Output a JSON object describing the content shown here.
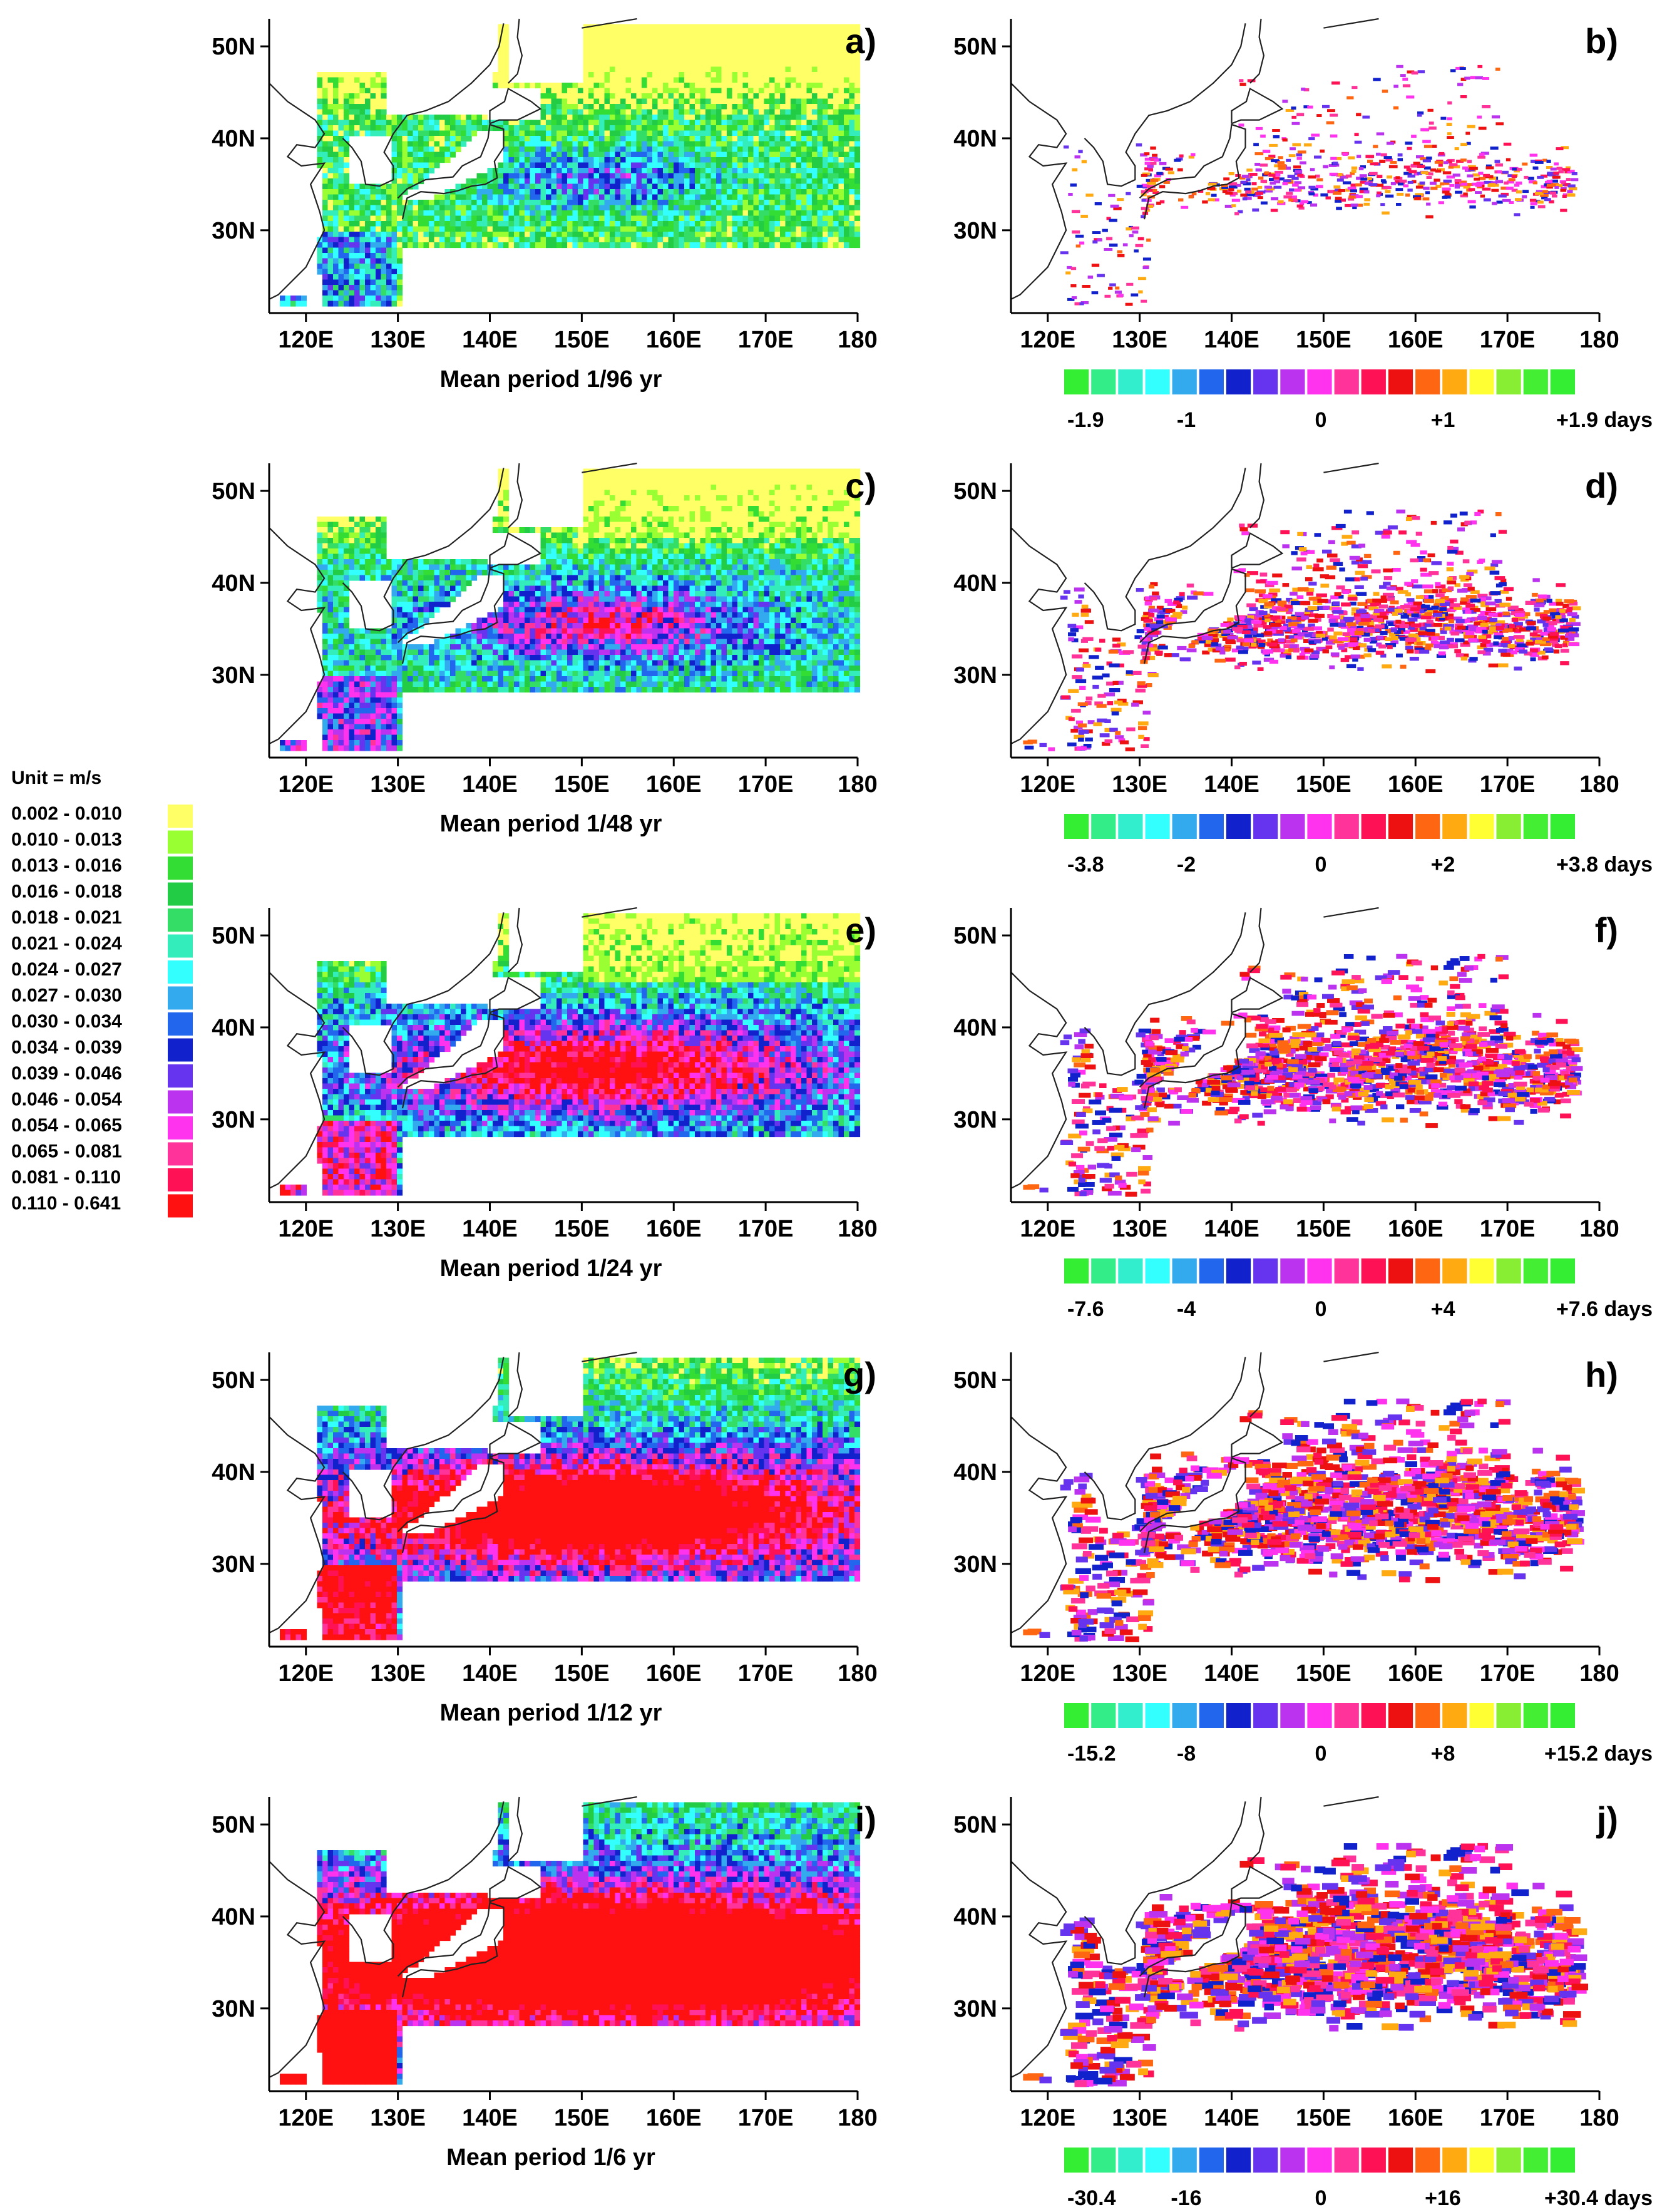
{
  "axes": {
    "lon_ticks": [
      "120E",
      "130E",
      "140E",
      "150E",
      "160E",
      "170E",
      "180"
    ],
    "lat_ticks": [
      "30N",
      "40N",
      "50N"
    ],
    "lon_range": [
      116,
      180
    ],
    "lat_range": [
      21,
      53
    ]
  },
  "legend": {
    "unit": "Unit = m/s",
    "entries": [
      {
        "range": "0.002  -  0.010",
        "color": "#ffff66"
      },
      {
        "range": "0.010  -  0.013",
        "color": "#99ff33"
      },
      {
        "range": "0.013  -  0.016",
        "color": "#33dd33"
      },
      {
        "range": "0.016  -  0.018",
        "color": "#22cc44"
      },
      {
        "range": "0.018  -  0.021",
        "color": "#33dd66"
      },
      {
        "range": "0.021  -  0.024",
        "color": "#33eebb"
      },
      {
        "range": "0.024  -  0.027",
        "color": "#33ffff"
      },
      {
        "range": "0.027  -  0.030",
        "color": "#33aaee"
      },
      {
        "range": "0.030  -  0.034",
        "color": "#2266ee"
      },
      {
        "range": "0.034  -  0.039",
        "color": "#1122cc"
      },
      {
        "range": "0.039  -  0.046",
        "color": "#6633ee"
      },
      {
        "range": "0.046  -  0.054",
        "color": "#bb33ee"
      },
      {
        "range": "0.054  -  0.065",
        "color": "#ff33ee"
      },
      {
        "range": "0.065  -  0.081",
        "color": "#ff3399"
      },
      {
        "range": "0.081  -  0.110",
        "color": "#ff1155"
      },
      {
        "range": "0.110  -  0.641",
        "color": "#ff1111"
      }
    ]
  },
  "phase_colorbar": {
    "colors": [
      "#33ee33",
      "#33ee88",
      "#33eecc",
      "#33ffff",
      "#33aaee",
      "#2266ee",
      "#1122cc",
      "#6633ee",
      "#bb33ee",
      "#ff33ee",
      "#ff3399",
      "#ff1155",
      "#ee1111",
      "#ff6611",
      "#ffaa11",
      "#ffff33",
      "#88ee33",
      "#44ee33",
      "#33ee33"
    ]
  },
  "panels": [
    {
      "letter": "a)",
      "period": "Mean period  1/96 yr",
      "type": "amplitude"
    },
    {
      "letter": "b)",
      "type": "phase",
      "labels": [
        "-1.9",
        "-1",
        "0",
        "+1",
        "+1.9 days"
      ]
    },
    {
      "letter": "c)",
      "period": "Mean period  1/48 yr",
      "type": "amplitude"
    },
    {
      "letter": "d)",
      "type": "phase",
      "labels": [
        "-3.8",
        "-2",
        "0",
        "+2",
        "+3.8 days"
      ]
    },
    {
      "letter": "e)",
      "period": "Mean period 1/24 yr",
      "type": "amplitude"
    },
    {
      "letter": "f)",
      "type": "phase",
      "labels": [
        "-7.6",
        "-4",
        "0",
        "+4",
        "+7.6 days"
      ]
    },
    {
      "letter": "g)",
      "period": "Mean period  1/12 yr",
      "type": "amplitude"
    },
    {
      "letter": "h)",
      "type": "phase",
      "labels": [
        "-15.2",
        "-8",
        "0",
        "+8",
        "+15.2 days"
      ]
    },
    {
      "letter": "i)",
      "period": "Mean period  1/6 yr",
      "type": "amplitude"
    },
    {
      "letter": "j)",
      "type": "phase",
      "labels": [
        "-30.4",
        "-16",
        "0",
        "+16",
        "+30.4 days"
      ]
    }
  ]
}
